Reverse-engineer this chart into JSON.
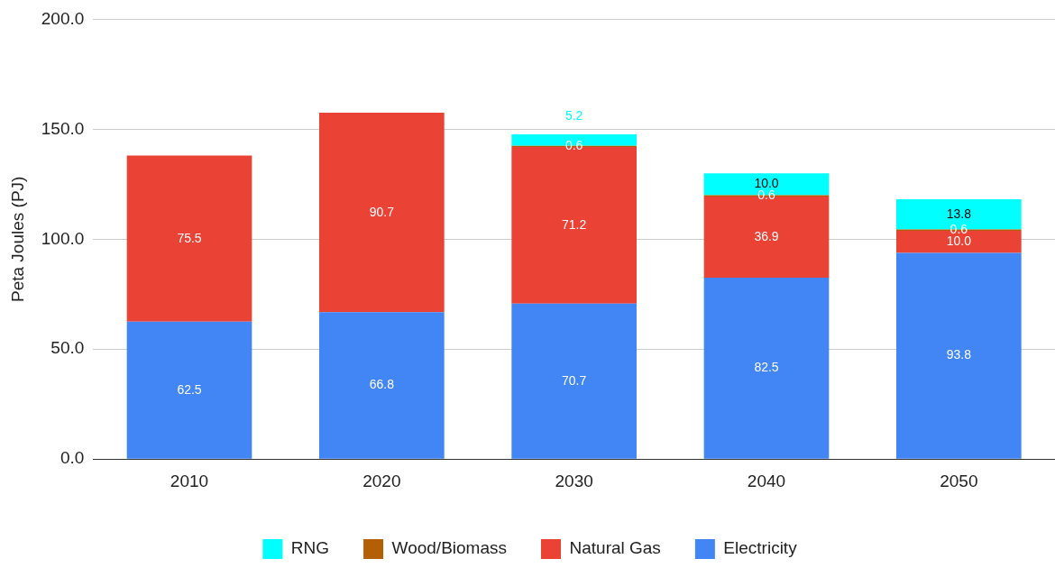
{
  "chart_data": {
    "type": "bar",
    "stacked": true,
    "ylabel": "Peta Joules (PJ)",
    "categories": [
      "2010",
      "2020",
      "2030",
      "2040",
      "2050"
    ],
    "series": [
      {
        "name": "Electricity",
        "color": "#4285f4",
        "values": [
          62.5,
          66.8,
          70.7,
          82.5,
          93.8
        ],
        "value_labels": [
          "62.5",
          "66.8",
          "70.7",
          "82.5",
          "93.8"
        ]
      },
      {
        "name": "Natural Gas",
        "color": "#ea4335",
        "values": [
          75.5,
          90.7,
          71.2,
          36.9,
          10.0
        ],
        "value_labels": [
          "75.5",
          "90.7",
          "71.2",
          "36.9",
          "10.0"
        ]
      },
      {
        "name": "Wood/Biomass",
        "color": "#b45f06",
        "values": [
          null,
          null,
          0.6,
          0.6,
          0.6
        ],
        "value_labels": [
          null,
          null,
          "0.6",
          "0.6",
          "0.6"
        ]
      },
      {
        "name": "RNG",
        "color": "#00ffff",
        "values": [
          null,
          null,
          5.2,
          10.0,
          13.8
        ],
        "value_labels": [
          null,
          null,
          "5.2",
          "10.0",
          "13.8"
        ]
      }
    ],
    "ylim": [
      0,
      200
    ],
    "yticks": [
      {
        "value": 0,
        "label": "0.0"
      },
      {
        "value": 50,
        "label": "50.0"
      },
      {
        "value": 100,
        "label": "100.0"
      },
      {
        "value": 150,
        "label": "150.0"
      },
      {
        "value": 200,
        "label": "200.0"
      }
    ],
    "grid": "y",
    "legend": "bottom"
  }
}
